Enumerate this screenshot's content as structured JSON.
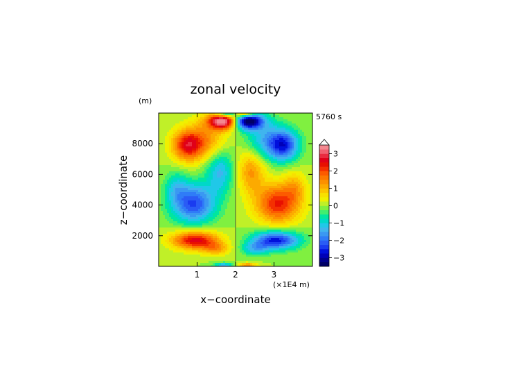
{
  "chart_data": {
    "type": "heatmap",
    "title": "zonal velocity",
    "xlabel": "x−coordinate",
    "ylabel": "z−coordinate",
    "x_unit_label": "(×1E4 m)",
    "y_unit_label": "(m)",
    "time_label": "5760 s",
    "xlim": [
      0,
      4
    ],
    "ylim": [
      0,
      10000
    ],
    "x_ticks": [
      {
        "value": 1,
        "label": "1"
      },
      {
        "value": 2,
        "label": "2"
      },
      {
        "value": 3,
        "label": "3"
      }
    ],
    "y_ticks": [
      {
        "value": 2000,
        "label": "2000"
      },
      {
        "value": 4000,
        "label": "4000"
      },
      {
        "value": 6000,
        "label": "6000"
      },
      {
        "value": 8000,
        "label": "8000"
      }
    ],
    "colorbar": {
      "range": [
        -3.5,
        3.5
      ],
      "step": 0.25,
      "labels": [
        {
          "value": 3,
          "label": "3"
        },
        {
          "value": 2,
          "label": "2"
        },
        {
          "value": 1,
          "label": "1"
        },
        {
          "value": 0,
          "label": "0"
        },
        {
          "value": -1,
          "label": "−1"
        },
        {
          "value": -2,
          "label": "−2"
        },
        {
          "value": -3,
          "label": "−3"
        }
      ],
      "colors": [
        "#000066",
        "#00008c",
        "#0000b8",
        "#0010dd",
        "#1a3cf0",
        "#2a5cf5",
        "#2f7cf7",
        "#3a98f2",
        "#40b4ee",
        "#20c8e8",
        "#00d8c8",
        "#00e6a0",
        "#40ee70",
        "#80f040",
        "#c0f028",
        "#f0f000",
        "#f8e000",
        "#fcc400",
        "#fcaa00",
        "#fc9000",
        "#fc7800",
        "#fc5a00",
        "#f43000",
        "#e81000",
        "#e00018",
        "#e82c40",
        "#f06070",
        "#f48890"
      ],
      "overflow_color": "#ffffff"
    },
    "features": [
      {
        "x": 2.3,
        "z": 9500,
        "sx": 0.28,
        "sz": 380,
        "amp": -3.9
      },
      {
        "x": 1.7,
        "z": 9500,
        "sx": 0.28,
        "sz": 380,
        "amp": 3.9
      },
      {
        "x": 2.25,
        "z": 9950,
        "sx": 0.2,
        "sz": 200,
        "amp": 2.3
      },
      {
        "x": 1.75,
        "z": 9950,
        "sx": 0.2,
        "sz": 200,
        "amp": -2.3
      },
      {
        "x": 3.25,
        "z": 7900,
        "sx": 0.28,
        "sz": 700,
        "amp": -2.4
      },
      {
        "x": 0.75,
        "z": 7900,
        "sx": 0.28,
        "sz": 700,
        "amp": 2.4
      },
      {
        "x": 2.75,
        "z": 8300,
        "sx": 0.35,
        "sz": 900,
        "amp": -1.2
      },
      {
        "x": 1.25,
        "z": 8300,
        "sx": 0.35,
        "sz": 900,
        "amp": 1.2
      },
      {
        "x": 2.4,
        "z": 6200,
        "sx": 0.25,
        "sz": 1000,
        "amp": 1.3
      },
      {
        "x": 1.6,
        "z": 6200,
        "sx": 0.25,
        "sz": 1000,
        "amp": -1.3
      },
      {
        "x": 3.1,
        "z": 4100,
        "sx": 0.4,
        "sz": 900,
        "amp": 2.3
      },
      {
        "x": 0.9,
        "z": 4100,
        "sx": 0.4,
        "sz": 900,
        "amp": -2.3
      },
      {
        "x": 3.55,
        "z": 5200,
        "sx": 0.2,
        "sz": 700,
        "amp": 0.8
      },
      {
        "x": 0.45,
        "z": 5200,
        "sx": 0.2,
        "sz": 700,
        "amp": -0.8
      },
      {
        "x": 3.05,
        "z": 1700,
        "sx": 0.42,
        "sz": 420,
        "amp": -2.7
      },
      {
        "x": 0.95,
        "z": 1700,
        "sx": 0.42,
        "sz": 420,
        "amp": 2.7
      },
      {
        "x": 2.5,
        "z": 1150,
        "sx": 0.25,
        "sz": 300,
        "amp": -1.1
      },
      {
        "x": 1.5,
        "z": 1150,
        "sx": 0.25,
        "sz": 300,
        "amp": 1.1
      },
      {
        "x": 2.3,
        "z": 60,
        "sx": 0.18,
        "sz": 130,
        "amp": 1.4
      },
      {
        "x": 1.7,
        "z": 60,
        "sx": 0.18,
        "sz": 130,
        "amp": -1.4
      }
    ]
  }
}
